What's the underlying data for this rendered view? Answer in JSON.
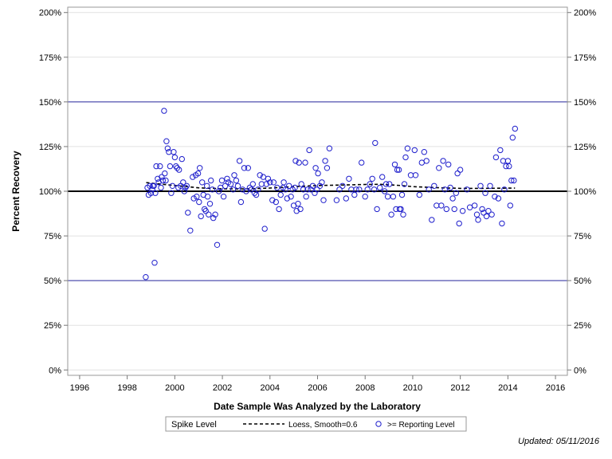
{
  "chart_data": {
    "type": "scatter",
    "xlabel": "Date Sample Was Analyzed by the Laboratory",
    "ylabel": "Percent Recovery",
    "xlim": [
      1995.5,
      2016.5
    ],
    "ylim": [
      -3,
      203
    ],
    "x_ticks": [
      "1996",
      "1998",
      "2000",
      "2002",
      "2004",
      "2006",
      "2008",
      "2010",
      "2012",
      "2014",
      "2016"
    ],
    "y_ticks": [
      "0%",
      "25%",
      "50%",
      "75%",
      "100%",
      "125%",
      "150%",
      "175%",
      "200%"
    ],
    "reference_lines": [
      {
        "y": 100,
        "style": "solid-thick"
      },
      {
        "y": 50,
        "style": "solid-thin"
      },
      {
        "y": 150,
        "style": "solid-thin"
      }
    ],
    "grid": true,
    "legend": {
      "title": "Spike Level",
      "placement": "bottom",
      "entries": [
        "Loess, Smooth=0.6",
        ">= Reporting Level"
      ]
    },
    "series": [
      {
        "name": ">= Reporting Level",
        "kind": "scatter",
        "points": [
          [
            1998.78,
            52
          ],
          [
            1998.85,
            102
          ],
          [
            1998.9,
            98
          ],
          [
            1998.95,
            103
          ],
          [
            1999.0,
            99
          ],
          [
            1999.05,
            101
          ],
          [
            1999.08,
            103
          ],
          [
            1999.12,
            103
          ],
          [
            1999.15,
            60
          ],
          [
            1999.18,
            99
          ],
          [
            1999.22,
            114
          ],
          [
            1999.28,
            107
          ],
          [
            1999.32,
            105
          ],
          [
            1999.38,
            114
          ],
          [
            1999.42,
            102
          ],
          [
            1999.45,
            108
          ],
          [
            1999.5,
            106
          ],
          [
            1999.55,
            145
          ],
          [
            1999.58,
            110
          ],
          [
            1999.62,
            106
          ],
          [
            1999.65,
            128
          ],
          [
            1999.7,
            124
          ],
          [
            1999.75,
            122
          ],
          [
            1999.8,
            114
          ],
          [
            1999.85,
            99
          ],
          [
            1999.9,
            103
          ],
          [
            1999.95,
            122
          ],
          [
            2000.0,
            119
          ],
          [
            2000.05,
            114
          ],
          [
            2000.1,
            113
          ],
          [
            2000.15,
            102
          ],
          [
            2000.18,
            112
          ],
          [
            2000.25,
            103
          ],
          [
            2000.3,
            118
          ],
          [
            2000.35,
            105
          ],
          [
            2000.4,
            100
          ],
          [
            2000.45,
            102
          ],
          [
            2000.5,
            103
          ],
          [
            2000.55,
            88
          ],
          [
            2000.65,
            78
          ],
          [
            2000.75,
            108
          ],
          [
            2000.8,
            96
          ],
          [
            2000.88,
            109
          ],
          [
            2000.92,
            97
          ],
          [
            2000.98,
            110
          ],
          [
            2001.02,
            94
          ],
          [
            2001.05,
            113
          ],
          [
            2001.1,
            86
          ],
          [
            2001.15,
            105
          ],
          [
            2001.2,
            98
          ],
          [
            2001.25,
            90
          ],
          [
            2001.3,
            89
          ],
          [
            2001.35,
            103
          ],
          [
            2001.38,
            97
          ],
          [
            2001.42,
            87
          ],
          [
            2001.48,
            93
          ],
          [
            2001.52,
            106
          ],
          [
            2001.58,
            101
          ],
          [
            2001.62,
            85
          ],
          [
            2001.7,
            87
          ],
          [
            2001.78,
            70
          ],
          [
            2001.85,
            100
          ],
          [
            2001.92,
            102
          ],
          [
            2001.98,
            106
          ],
          [
            2002.05,
            97
          ],
          [
            2002.12,
            103
          ],
          [
            2002.2,
            107
          ],
          [
            2002.25,
            105
          ],
          [
            2002.35,
            104
          ],
          [
            2002.45,
            101
          ],
          [
            2002.5,
            109
          ],
          [
            2002.58,
            106
          ],
          [
            2002.65,
            103
          ],
          [
            2002.72,
            117
          ],
          [
            2002.78,
            94
          ],
          [
            2002.85,
            101
          ],
          [
            2002.92,
            113
          ],
          [
            2003.0,
            100
          ],
          [
            2003.08,
            113
          ],
          [
            2003.15,
            102
          ],
          [
            2003.22,
            101
          ],
          [
            2003.28,
            104
          ],
          [
            2003.35,
            99
          ],
          [
            2003.42,
            98
          ],
          [
            2003.5,
            101
          ],
          [
            2003.58,
            109
          ],
          [
            2003.65,
            104
          ],
          [
            2003.72,
            108
          ],
          [
            2003.78,
            79
          ],
          [
            2003.85,
            104
          ],
          [
            2003.92,
            107
          ],
          [
            2004.0,
            105
          ],
          [
            2004.1,
            95
          ],
          [
            2004.15,
            105
          ],
          [
            2004.25,
            94
          ],
          [
            2004.3,
            102
          ],
          [
            2004.38,
            90
          ],
          [
            2004.45,
            98
          ],
          [
            2004.55,
            102
          ],
          [
            2004.58,
            105
          ],
          [
            2004.65,
            101
          ],
          [
            2004.72,
            96
          ],
          [
            2004.8,
            103
          ],
          [
            2004.88,
            97
          ],
          [
            2004.95,
            101
          ],
          [
            2005.0,
            92
          ],
          [
            2005.05,
            102
          ],
          [
            2005.08,
            117
          ],
          [
            2005.12,
            89
          ],
          [
            2005.18,
            93
          ],
          [
            2005.22,
            116
          ],
          [
            2005.28,
            90
          ],
          [
            2005.32,
            104
          ],
          [
            2005.4,
            101
          ],
          [
            2005.48,
            116
          ],
          [
            2005.52,
            97
          ],
          [
            2005.58,
            101
          ],
          [
            2005.65,
            123
          ],
          [
            2005.72,
            101
          ],
          [
            2005.8,
            103
          ],
          [
            2005.88,
            99
          ],
          [
            2005.92,
            113
          ],
          [
            2005.98,
            101
          ],
          [
            2006.02,
            110
          ],
          [
            2006.1,
            103
          ],
          [
            2006.18,
            105
          ],
          [
            2006.25,
            95
          ],
          [
            2006.32,
            117
          ],
          [
            2006.4,
            113
          ],
          [
            2006.5,
            124
          ],
          [
            2006.8,
            95
          ],
          [
            2006.92,
            101
          ],
          [
            2007.05,
            103
          ],
          [
            2007.2,
            96
          ],
          [
            2007.32,
            107
          ],
          [
            2007.42,
            101
          ],
          [
            2007.55,
            98
          ],
          [
            2007.62,
            101
          ],
          [
            2007.75,
            101
          ],
          [
            2007.85,
            116
          ],
          [
            2008.0,
            97
          ],
          [
            2008.1,
            101
          ],
          [
            2008.2,
            104
          ],
          [
            2008.3,
            107
          ],
          [
            2008.38,
            101
          ],
          [
            2008.42,
            127
          ],
          [
            2008.5,
            90
          ],
          [
            2008.62,
            102
          ],
          [
            2008.72,
            108
          ],
          [
            2008.82,
            100
          ],
          [
            2008.88,
            104
          ],
          [
            2008.95,
            97
          ],
          [
            2009.02,
            104
          ],
          [
            2009.1,
            87
          ],
          [
            2009.18,
            97
          ],
          [
            2009.25,
            115
          ],
          [
            2009.3,
            90
          ],
          [
            2009.35,
            112
          ],
          [
            2009.42,
            112
          ],
          [
            2009.45,
            90
          ],
          [
            2009.5,
            90
          ],
          [
            2009.55,
            98
          ],
          [
            2009.6,
            87
          ],
          [
            2009.65,
            104
          ],
          [
            2009.7,
            119
          ],
          [
            2009.78,
            124
          ],
          [
            2009.92,
            109
          ],
          [
            2010.08,
            123
          ],
          [
            2010.12,
            109
          ],
          [
            2010.28,
            98
          ],
          [
            2010.38,
            116
          ],
          [
            2010.48,
            122
          ],
          [
            2010.58,
            117
          ],
          [
            2010.68,
            101
          ],
          [
            2010.8,
            84
          ],
          [
            2010.9,
            103
          ],
          [
            2011.0,
            92
          ],
          [
            2011.1,
            113
          ],
          [
            2011.2,
            92
          ],
          [
            2011.28,
            117
          ],
          [
            2011.35,
            101
          ],
          [
            2011.42,
            90
          ],
          [
            2011.5,
            115
          ],
          [
            2011.58,
            102
          ],
          [
            2011.68,
            96
          ],
          [
            2011.75,
            90
          ],
          [
            2011.82,
            99
          ],
          [
            2011.88,
            110
          ],
          [
            2011.95,
            82
          ],
          [
            2012.0,
            112
          ],
          [
            2012.1,
            89
          ],
          [
            2012.28,
            101
          ],
          [
            2012.4,
            91
          ],
          [
            2012.6,
            92
          ],
          [
            2012.7,
            87
          ],
          [
            2012.75,
            84
          ],
          [
            2012.85,
            103
          ],
          [
            2012.92,
            90
          ],
          [
            2012.98,
            88
          ],
          [
            2013.05,
            99
          ],
          [
            2013.1,
            86
          ],
          [
            2013.18,
            89
          ],
          [
            2013.25,
            103
          ],
          [
            2013.32,
            87
          ],
          [
            2013.45,
            97
          ],
          [
            2013.5,
            119
          ],
          [
            2013.6,
            96
          ],
          [
            2013.68,
            123
          ],
          [
            2013.75,
            82
          ],
          [
            2013.8,
            117
          ],
          [
            2013.85,
            101
          ],
          [
            2013.92,
            114
          ],
          [
            2014.0,
            117
          ],
          [
            2014.05,
            114
          ],
          [
            2014.1,
            92
          ],
          [
            2014.15,
            106
          ],
          [
            2014.2,
            130
          ],
          [
            2014.25,
            106
          ],
          [
            2014.3,
            135
          ]
        ]
      },
      {
        "name": "Loess, Smooth=0.6",
        "kind": "line",
        "points": [
          [
            1998.8,
            104.8
          ],
          [
            1999.5,
            103.9
          ],
          [
            2000.0,
            103.2
          ],
          [
            2000.5,
            102.6
          ],
          [
            2001.0,
            101.9
          ],
          [
            2002.0,
            101.4
          ],
          [
            2003.0,
            101.3
          ],
          [
            2004.0,
            101.8
          ],
          [
            2005.0,
            102.6
          ],
          [
            2006.0,
            103.2
          ],
          [
            2007.0,
            103.5
          ],
          [
            2008.0,
            103.8
          ],
          [
            2008.6,
            103.9
          ],
          [
            2009.0,
            103.6
          ],
          [
            2009.5,
            103.2
          ],
          [
            2010.0,
            102.6
          ],
          [
            2011.0,
            102.0
          ],
          [
            2012.0,
            101.6
          ],
          [
            2013.0,
            101.6
          ],
          [
            2014.3,
            101.8
          ]
        ]
      }
    ]
  },
  "footnote": "Updated: 05/11/2016",
  "colors": {
    "marker": "#1F1FCC",
    "reference": "#2A2AA0",
    "grid": "#E2E2E2",
    "frame": "#999999"
  }
}
